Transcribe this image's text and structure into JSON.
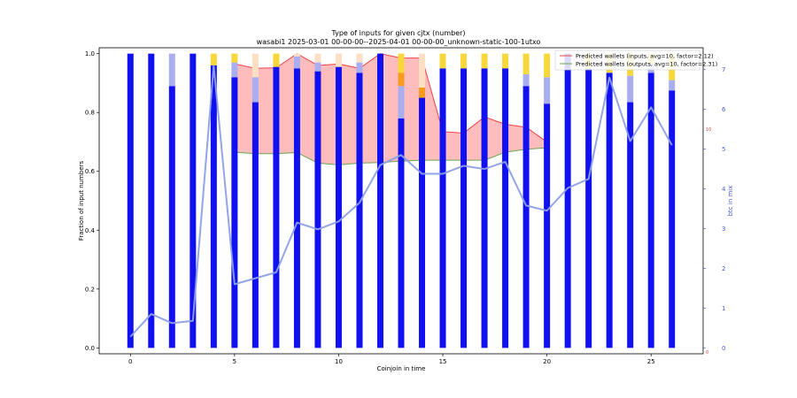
{
  "chart_data": {
    "type": "bar",
    "title": "Type of inputs for given cjtx (number)",
    "subtitle": "wasabi1 2025-03-01 00-00-00--2025-04-01 00-00-00_unknown-static-100-1utxo",
    "xlabel": "Coinjoin in time",
    "ylabel": "Fraction of input numbers",
    "ylabel_right": "btc in mix",
    "xlim": [
      -1.5,
      27.5
    ],
    "ylim": [
      -0.02,
      1.02
    ],
    "ylim_right": [
      -0.15,
      7.55
    ],
    "xticks": [
      "0",
      "5",
      "10",
      "15",
      "20",
      "25"
    ],
    "xtick_values": [
      0,
      5,
      10,
      15,
      20,
      25
    ],
    "yticks": [
      "0.0",
      "0.2",
      "0.4",
      "0.6",
      "0.8",
      "1.0"
    ],
    "ytick_values": [
      0.0,
      0.2,
      0.4,
      0.6,
      0.8,
      1.0
    ],
    "yticks_right": [
      "0",
      "1",
      "2",
      "3",
      "4",
      "5",
      "6",
      "7"
    ],
    "ytick_right_values": [
      0,
      1,
      2,
      3,
      4,
      5,
      6,
      7
    ],
    "x": [
      0,
      1,
      2,
      3,
      4,
      5,
      6,
      7,
      8,
      9,
      10,
      11,
      12,
      13,
      14,
      15,
      16,
      17,
      18,
      19,
      20,
      21,
      22,
      23,
      24,
      25,
      26
    ],
    "stacked_segments": [
      {
        "name": "blue",
        "color": "#1010f0",
        "values": [
          1.0,
          1.0,
          0.89,
          1.0,
          0.96,
          0.92,
          0.835,
          0.955,
          0.95,
          0.94,
          0.955,
          0.935,
          1.0,
          0.78,
          0.85,
          0.95,
          0.95,
          0.95,
          0.95,
          0.89,
          0.83,
          1.0,
          0.95,
          0.935,
          0.835,
          0.935,
          0.875
        ]
      },
      {
        "name": "light-blue",
        "color": "#a8aef0",
        "values": [
          0,
          0,
          0.11,
          0,
          0,
          0.05,
          0.085,
          0,
          0.04,
          0.03,
          0,
          0.035,
          0,
          0.11,
          0,
          0,
          0,
          0,
          0,
          0.04,
          0.09,
          0,
          0,
          0,
          0.09,
          0.03,
          0.035
        ]
      },
      {
        "name": "orange",
        "color": "#f79a1e",
        "values": [
          0,
          0,
          0,
          0,
          0,
          0,
          0,
          0,
          0,
          0,
          0,
          0,
          0,
          0.045,
          0.035,
          0,
          0,
          0,
          0,
          0,
          0,
          0,
          0,
          0,
          0,
          0,
          0
        ]
      },
      {
        "name": "yellow",
        "color": "#f7d73a",
        "values": [
          0,
          0,
          0,
          0,
          0.04,
          0.03,
          0,
          0.045,
          0,
          0,
          0,
          0,
          0,
          0.065,
          0,
          0.05,
          0.05,
          0.05,
          0.05,
          0.07,
          0.08,
          0,
          0.05,
          0.065,
          0.075,
          0.035,
          0.09
        ]
      },
      {
        "name": "peach",
        "color": "#fde0c4",
        "values": [
          0,
          0,
          0,
          0,
          0,
          0,
          0.08,
          0,
          0.01,
          0.03,
          0.045,
          0.03,
          0,
          0,
          0.115,
          0,
          0,
          0,
          0,
          0,
          0,
          0,
          0,
          0,
          0,
          0,
          0
        ]
      }
    ],
    "btc_in_mix": {
      "color": "#8da0e8",
      "x": [
        0,
        1,
        2,
        3,
        4,
        5,
        6,
        7,
        8,
        9,
        10,
        11,
        12,
        13,
        14,
        15,
        16,
        17,
        18,
        19,
        20,
        21,
        22,
        23,
        24,
        25,
        26
      ],
      "values": [
        0.28,
        0.85,
        0.62,
        0.68,
        7.1,
        1.6,
        1.75,
        1.9,
        3.15,
        2.98,
        3.18,
        3.65,
        4.6,
        4.85,
        4.38,
        4.38,
        4.58,
        4.5,
        4.68,
        3.58,
        3.45,
        4.02,
        4.25,
        6.8,
        5.2,
        6.05,
        5.1
      ]
    },
    "predicted_wallets_band": {
      "fill": "#ffb0b0",
      "x": [
        5,
        6,
        7,
        8,
        9,
        10,
        11,
        12,
        13,
        14,
        15,
        16,
        17,
        18,
        19,
        20
      ],
      "upper": [
        0.965,
        0.95,
        0.952,
        1.0,
        0.96,
        0.965,
        0.95,
        1.0,
        0.985,
        0.985,
        0.735,
        0.73,
        0.785,
        0.76,
        0.75,
        0.7
      ],
      "lower": [
        0.665,
        0.66,
        0.66,
        0.664,
        0.628,
        0.622,
        0.628,
        0.63,
        0.635,
        0.638,
        0.638,
        0.638,
        0.638,
        0.665,
        0.675,
        0.68
      ],
      "upper_color": "#ee4444",
      "lower_color": "#6aa84f"
    },
    "right_axis_markers": [
      {
        "label": "10",
        "y_right": 5.5,
        "color": "#ee4444"
      },
      {
        "label": "0",
        "y_right": -0.1,
        "color": "#ee4444"
      }
    ],
    "legend": {
      "placement": "top-right",
      "items": [
        {
          "label": "Predicted wallets (inputs, avg=10, factor=2.12)",
          "color": "#ee4444"
        },
        {
          "label": "Predicted wallets (outputs, avg=10, factor=2.31)",
          "color": "#6aa84f"
        }
      ]
    }
  }
}
